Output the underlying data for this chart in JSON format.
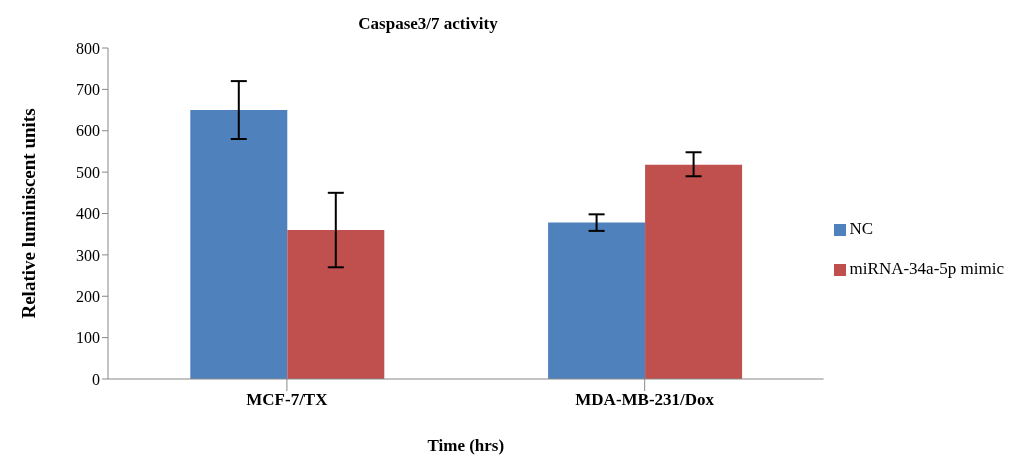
{
  "chart_data": {
    "type": "bar",
    "title": "Caspase3/7 activity",
    "xlabel": "Time (hrs)",
    "ylabel": "Relative luminiscent units",
    "categories": [
      "MCF-7/TX",
      "MDA-MB-231/Dox"
    ],
    "series": [
      {
        "name": "NC",
        "color": "#4f81bd",
        "values": [
          650,
          378
        ],
        "errors": [
          70,
          20
        ]
      },
      {
        "name": "miRNA-34a-5p mimic",
        "color": "#c0504d",
        "values": [
          360,
          518
        ],
        "errors": [
          90,
          [
            490,
            548
          ]
        ]
      }
    ],
    "ylim": [
      0,
      800
    ],
    "yticks": [
      0,
      100,
      200,
      300,
      400,
      500,
      600,
      700,
      800
    ],
    "grid": false,
    "legend": "right"
  }
}
